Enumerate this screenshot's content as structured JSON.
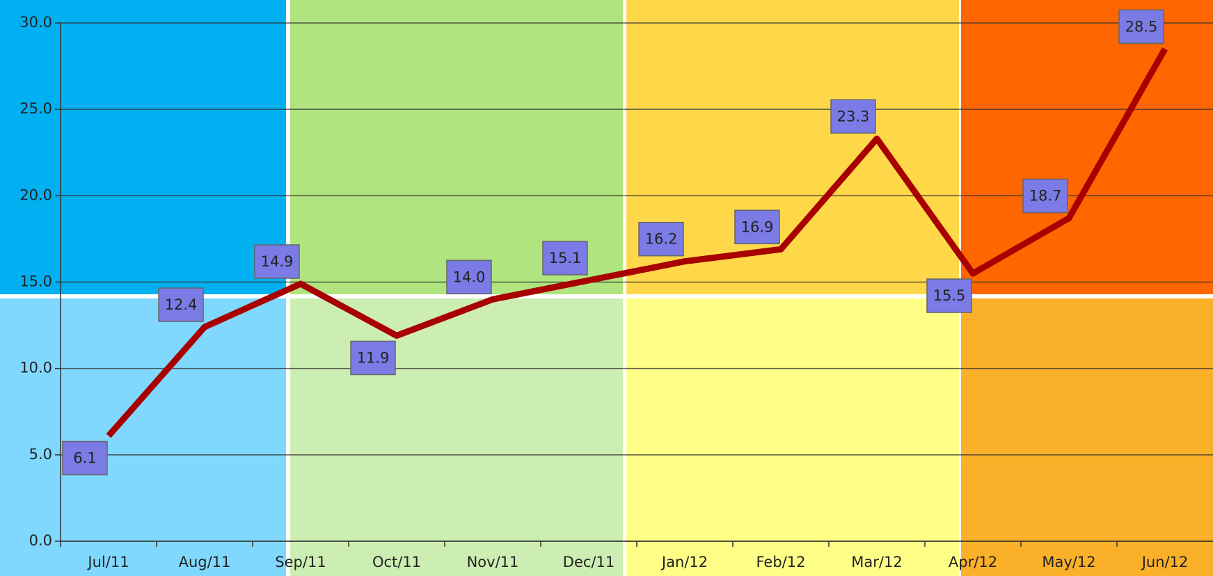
{
  "chart_data": {
    "type": "line",
    "categories": [
      "Jul/11",
      "Aug/11",
      "Sep/11",
      "Oct/11",
      "Nov/11",
      "Dec/11",
      "Jan/12",
      "Feb/12",
      "Mar/12",
      "Apr/12",
      "May/12",
      "Jun/12"
    ],
    "series": [
      {
        "color": "#a80000",
        "values": [
          6.1,
          12.4,
          14.9,
          11.9,
          14.0,
          15.1,
          16.2,
          16.9,
          23.3,
          15.5,
          18.7,
          28.5
        ],
        "value_labels": [
          "6.1",
          "12.4",
          "14.9",
          "11.9",
          "14.0",
          "15.1",
          "16.2",
          "16.9",
          "23.3",
          "15.5",
          "18.7",
          "28.5"
        ]
      }
    ],
    "ylim": [
      0,
      30
    ],
    "yticks": [
      {
        "value": 0,
        "label": "0.0"
      },
      {
        "value": 5,
        "label": "5.0"
      },
      {
        "value": 10,
        "label": "10.0"
      },
      {
        "value": 15,
        "label": "15.0"
      },
      {
        "value": 20,
        "label": "20.0"
      },
      {
        "value": 25,
        "label": "25.0"
      },
      {
        "value": 30,
        "label": "30.0"
      }
    ],
    "grid": true
  }
}
